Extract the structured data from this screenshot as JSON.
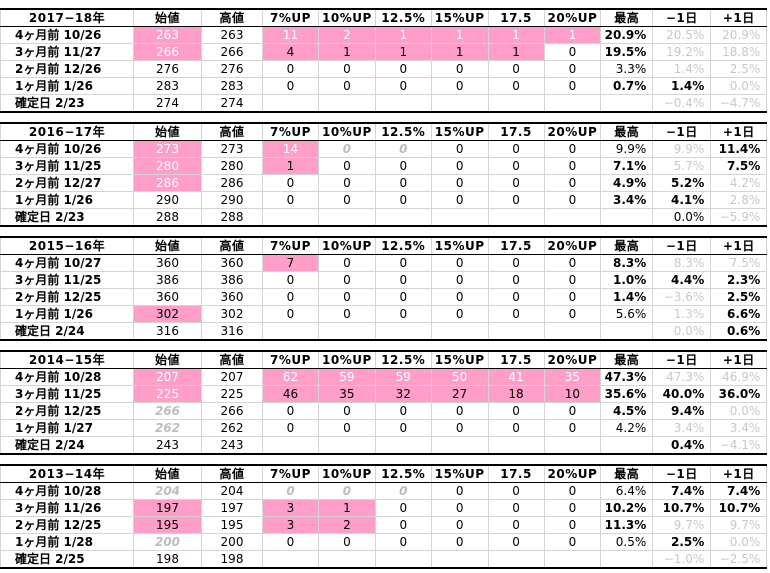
{
  "headers": [
    "始値",
    "高値",
    "7%UP",
    "10%UP",
    "12.5%",
    "15%UP",
    "17.5",
    "20%UP",
    "最高",
    "−1日",
    "+1日"
  ],
  "sections": [
    {
      "year": "2017−18年",
      "rows": [
        {
          "label": "4ヶ月前 10/26",
          "cells": [
            "263",
            "263",
            "11",
            "2",
            "1",
            "1",
            "1",
            "1",
            "20.9%",
            "20.5%",
            "20.9%"
          ],
          "style": [
            "pink",
            "",
            "pink",
            "pink",
            "pink",
            "pink",
            "pink",
            "pink",
            "bold",
            "light",
            "light"
          ]
        },
        {
          "label": "3ヶ月前 11/27",
          "cells": [
            "266",
            "266",
            "4",
            "1",
            "1",
            "1",
            "1",
            "0",
            "19.5%",
            "19.2%",
            "18.8%"
          ],
          "style": [
            "pink",
            "",
            "pinkd",
            "pinkd",
            "pinkd",
            "pinkd",
            "pinkd",
            "",
            "bold",
            "light",
            "light"
          ]
        },
        {
          "label": "2ヶ月前 12/26",
          "cells": [
            "276",
            "276",
            "0",
            "0",
            "0",
            "0",
            "0",
            "0",
            "3.3%",
            "1.4%",
            "2.5%"
          ],
          "style": [
            "",
            "",
            "",
            "",
            "",
            "",
            "",
            "",
            "",
            "light",
            "light"
          ]
        },
        {
          "label": "1ヶ月前 1/26",
          "cells": [
            "283",
            "283",
            "0",
            "0",
            "0",
            "0",
            "0",
            "0",
            "0.7%",
            "1.4%",
            "0.0%"
          ],
          "style": [
            "",
            "",
            "",
            "",
            "",
            "",
            "",
            "",
            "bold",
            "bold",
            "light"
          ]
        },
        {
          "label": "確定日 2/23",
          "cells": [
            "274",
            "274",
            "",
            "",
            "",
            "",
            "",
            "",
            "",
            "−0.4%",
            "−4.7%"
          ],
          "style": [
            "",
            "",
            "",
            "",
            "",
            "",
            "",
            "",
            "",
            "light",
            "light"
          ]
        }
      ]
    },
    {
      "year": "2016−17年",
      "rows": [
        {
          "label": "4ヶ月前 10/26",
          "cells": [
            "273",
            "273",
            "14",
            "0",
            "0",
            "0",
            "0",
            "0",
            "9.9%",
            "9.9%",
            "11.4%"
          ],
          "style": [
            "pink",
            "",
            "pink",
            "ital",
            "ital",
            "",
            "",
            "",
            "",
            "light",
            "bold"
          ]
        },
        {
          "label": "3ヶ月前 11/25",
          "cells": [
            "280",
            "280",
            "1",
            "0",
            "0",
            "0",
            "0",
            "0",
            "7.1%",
            "5.7%",
            "7.5%"
          ],
          "style": [
            "pink",
            "",
            "pinkd",
            "",
            "",
            "",
            "",
            "",
            "bold",
            "light",
            "bold"
          ]
        },
        {
          "label": "2ヶ月前 12/27",
          "cells": [
            "286",
            "286",
            "0",
            "0",
            "0",
            "0",
            "0",
            "0",
            "4.9%",
            "5.2%",
            "4.2%"
          ],
          "style": [
            "pink",
            "",
            "",
            "",
            "",
            "",
            "",
            "",
            "bold",
            "bold",
            "light"
          ]
        },
        {
          "label": "1ヶ月前 1/26",
          "cells": [
            "290",
            "290",
            "0",
            "0",
            "0",
            "0",
            "0",
            "0",
            "3.4%",
            "4.1%",
            "2.8%"
          ],
          "style": [
            "",
            "",
            "",
            "",
            "",
            "",
            "",
            "",
            "bold",
            "bold",
            "light"
          ]
        },
        {
          "label": "確定日 2/23",
          "cells": [
            "288",
            "288",
            "",
            "",
            "",
            "",
            "",
            "",
            "",
            "0.0%",
            "−5.9%"
          ],
          "style": [
            "",
            "",
            "",
            "",
            "",
            "",
            "",
            "",
            "",
            "",
            "light"
          ]
        }
      ]
    },
    {
      "year": "2015−16年",
      "rows": [
        {
          "label": "4ヶ月前 10/27",
          "cells": [
            "360",
            "360",
            "7",
            "0",
            "0",
            "0",
            "0",
            "0",
            "8.3%",
            "8.3%",
            "7.5%"
          ],
          "style": [
            "",
            "",
            "pinkd",
            "",
            "",
            "",
            "",
            "",
            "bold",
            "light",
            "light"
          ]
        },
        {
          "label": "3ヶ月前 11/25",
          "cells": [
            "386",
            "386",
            "0",
            "0",
            "0",
            "0",
            "0",
            "0",
            "1.0%",
            "4.4%",
            "2.3%"
          ],
          "style": [
            "",
            "",
            "",
            "",
            "",
            "",
            "",
            "",
            "bold",
            "bold",
            "bold"
          ]
        },
        {
          "label": "2ヶ月前 12/25",
          "cells": [
            "360",
            "360",
            "0",
            "0",
            "0",
            "0",
            "0",
            "0",
            "1.4%",
            "−3.6%",
            "2.5%"
          ],
          "style": [
            "",
            "",
            "",
            "",
            "",
            "",
            "",
            "",
            "bold",
            "light",
            "bold"
          ]
        },
        {
          "label": "1ヶ月前 1/26",
          "cells": [
            "302",
            "302",
            "0",
            "0",
            "0",
            "0",
            "0",
            "0",
            "5.6%",
            "1.3%",
            "6.6%"
          ],
          "style": [
            "pinkd",
            "",
            "",
            "",
            "",
            "",
            "",
            "",
            "",
            "light",
            "bold"
          ]
        },
        {
          "label": "確定日 2/24",
          "cells": [
            "316",
            "316",
            "",
            "",
            "",
            "",
            "",
            "",
            "",
            "0.0%",
            "0.6%"
          ],
          "style": [
            "",
            "",
            "",
            "",
            "",
            "",
            "",
            "",
            "",
            "light",
            "bold"
          ]
        }
      ]
    },
    {
      "year": "2014−15年",
      "rows": [
        {
          "label": "4ヶ月前 10/28",
          "cells": [
            "207",
            "207",
            "62",
            "59",
            "59",
            "50",
            "41",
            "35",
            "47.3%",
            "47.3%",
            "46.9%"
          ],
          "style": [
            "pink",
            "",
            "pink",
            "pink",
            "pink",
            "pink",
            "pink",
            "pink",
            "bold",
            "light",
            "light"
          ]
        },
        {
          "label": "3ヶ月前 11/25",
          "cells": [
            "225",
            "225",
            "46",
            "35",
            "32",
            "27",
            "18",
            "10",
            "35.6%",
            "40.0%",
            "36.0%"
          ],
          "style": [
            "pink",
            "",
            "pinkd",
            "pinkd",
            "pinkd",
            "pinkd",
            "pinkd",
            "pinkd",
            "bold",
            "bold",
            "bold"
          ]
        },
        {
          "label": "2ヶ月前 12/25",
          "cells": [
            "266",
            "266",
            "0",
            "0",
            "0",
            "0",
            "0",
            "0",
            "4.5%",
            "9.4%",
            "0.0%"
          ],
          "style": [
            "ital",
            "",
            "",
            "",
            "",
            "",
            "",
            "",
            "bold",
            "bold",
            "light"
          ]
        },
        {
          "label": "1ヶ月前 1/27",
          "cells": [
            "262",
            "262",
            "0",
            "0",
            "0",
            "0",
            "0",
            "0",
            "4.2%",
            "3.4%",
            "3.4%"
          ],
          "style": [
            "ital",
            "",
            "",
            "",
            "",
            "",
            "",
            "",
            "",
            "light",
            "light"
          ]
        },
        {
          "label": "確定日 2/24",
          "cells": [
            "243",
            "243",
            "",
            "",
            "",
            "",
            "",
            "",
            "",
            "0.4%",
            "−4.1%"
          ],
          "style": [
            "",
            "",
            "",
            "",
            "",
            "",
            "",
            "",
            "",
            "bold",
            "light"
          ]
        }
      ]
    },
    {
      "year": "2013−14年",
      "rows": [
        {
          "label": "4ヶ月前 10/28",
          "cells": [
            "204",
            "204",
            "0",
            "0",
            "0",
            "0",
            "0",
            "0",
            "6.4%",
            "7.4%",
            "7.4%"
          ],
          "style": [
            "ital",
            "",
            "ital",
            "ital",
            "ital",
            "",
            "",
            "",
            "",
            "bold",
            "bold"
          ]
        },
        {
          "label": "3ヶ月前 11/26",
          "cells": [
            "197",
            "197",
            "3",
            "1",
            "0",
            "0",
            "0",
            "0",
            "10.2%",
            "10.7%",
            "10.7%"
          ],
          "style": [
            "pinkd",
            "",
            "pinkd",
            "pinkd",
            "",
            "",
            "",
            "",
            "bold",
            "bold",
            "bold"
          ]
        },
        {
          "label": "2ヶ月前 12/25",
          "cells": [
            "195",
            "195",
            "3",
            "2",
            "0",
            "0",
            "0",
            "0",
            "11.3%",
            "9.7%",
            "9.7%"
          ],
          "style": [
            "pinkd",
            "",
            "pinkd",
            "pinkd",
            "",
            "",
            "",
            "",
            "bold",
            "light",
            "light"
          ]
        },
        {
          "label": "1ヶ月前 1/28",
          "cells": [
            "200",
            "200",
            "0",
            "0",
            "0",
            "0",
            "0",
            "0",
            "0.5%",
            "2.5%",
            "0.0%"
          ],
          "style": [
            "ital",
            "",
            "",
            "",
            "",
            "",
            "",
            "",
            "",
            "bold",
            "light"
          ]
        },
        {
          "label": "確定日 2/25",
          "cells": [
            "198",
            "198",
            "",
            "",
            "",
            "",
            "",
            "",
            "",
            "−1.0%",
            "−2.5%"
          ],
          "style": [
            "",
            "",
            "",
            "",
            "",
            "",
            "",
            "",
            "",
            "light",
            "light"
          ]
        }
      ]
    }
  ]
}
